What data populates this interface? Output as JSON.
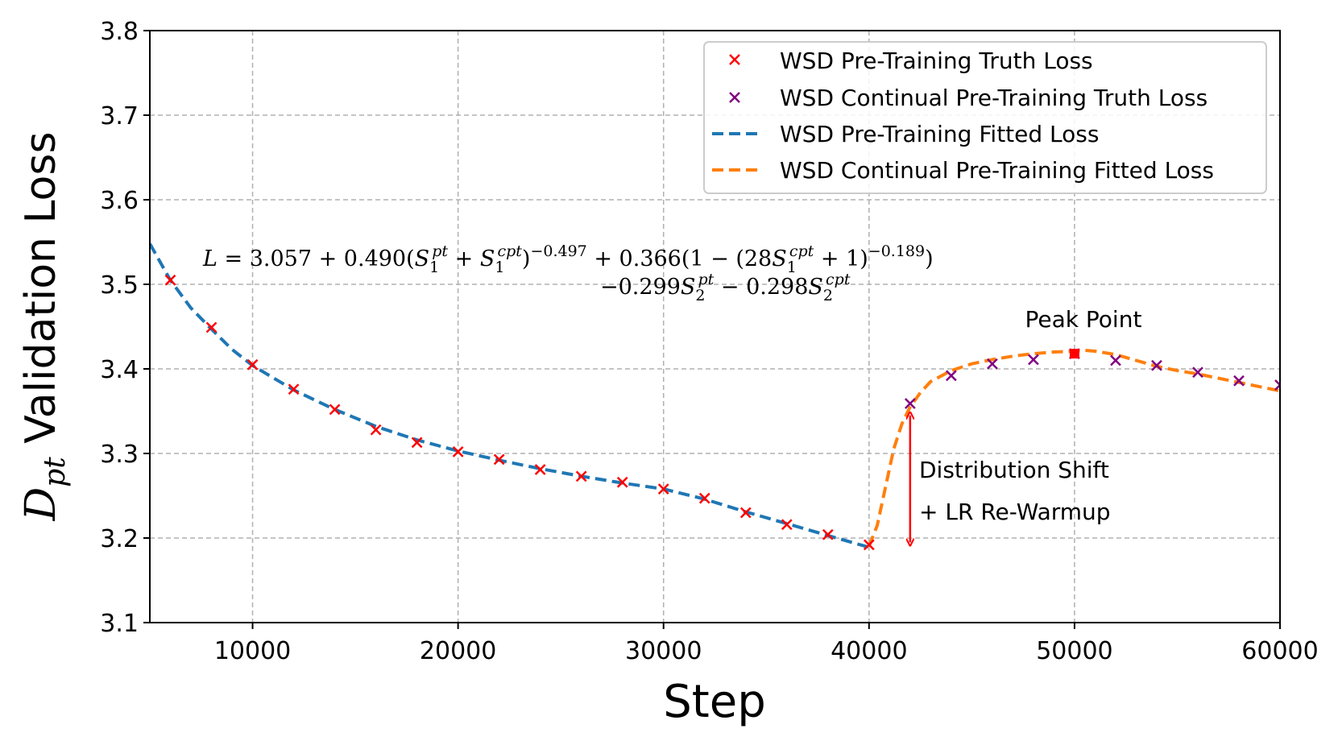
{
  "chart_data": {
    "type": "line",
    "title": "",
    "xlabel": "Step",
    "ylabel_main": "D",
    "ylabel_sub": "pt",
    "ylabel_rest": " Validation Loss",
    "xlim": [
      5000,
      60000
    ],
    "ylim": [
      3.1,
      3.8
    ],
    "xticks": [
      10000,
      20000,
      30000,
      40000,
      50000,
      60000
    ],
    "xtick_labels": [
      "10000",
      "20000",
      "30000",
      "40000",
      "50000",
      "60000"
    ],
    "yticks": [
      3.1,
      3.2,
      3.3,
      3.4,
      3.5,
      3.6,
      3.7,
      3.8
    ],
    "ytick_labels": [
      "3.1",
      "3.2",
      "3.3",
      "3.4",
      "3.5",
      "3.6",
      "3.7",
      "3.8"
    ],
    "grid": true,
    "legend_position": "top-right",
    "series": [
      {
        "name": "WSD Pre-Training Truth Loss",
        "kind": "scatter",
        "marker": "x",
        "color": "#ff0000",
        "x": [
          6000,
          8000,
          10000,
          12000,
          14000,
          16000,
          18000,
          20000,
          22000,
          24000,
          26000,
          28000,
          30000,
          32000,
          34000,
          36000,
          38000,
          40000
        ],
        "y": [
          3.505,
          3.449,
          3.405,
          3.376,
          3.352,
          3.328,
          3.313,
          3.302,
          3.293,
          3.281,
          3.273,
          3.266,
          3.258,
          3.247,
          3.23,
          3.216,
          3.204,
          3.192
        ]
      },
      {
        "name": "WSD Continual Pre-Training Truth Loss",
        "kind": "scatter",
        "marker": "x",
        "color": "#800080",
        "x": [
          42000,
          44000,
          46000,
          48000,
          50000,
          52000,
          54000,
          56000,
          58000,
          60000
        ],
        "y": [
          3.359,
          3.392,
          3.406,
          3.411,
          3.418,
          3.41,
          3.404,
          3.396,
          3.386,
          3.381
        ]
      },
      {
        "name": "WSD Pre-Training Fitted Loss",
        "kind": "line",
        "dash": true,
        "color": "#1f77b4",
        "x": [
          5000,
          6000,
          7000,
          8000,
          9000,
          10000,
          12000,
          14000,
          16000,
          18000,
          20000,
          22000,
          24000,
          26000,
          28000,
          30000,
          32000,
          34000,
          36000,
          38000,
          40000
        ],
        "y": [
          3.548,
          3.505,
          3.472,
          3.447,
          3.423,
          3.404,
          3.375,
          3.352,
          3.332,
          3.316,
          3.303,
          3.292,
          3.282,
          3.273,
          3.265,
          3.258,
          3.246,
          3.231,
          3.217,
          3.203,
          3.189
        ]
      },
      {
        "name": "WSD Continual Pre-Training Fitted Loss",
        "kind": "line",
        "dash": true,
        "color": "#ff7f0e",
        "x": [
          40000,
          40400,
          40800,
          41200,
          41600,
          42000,
          42500,
          43000,
          44000,
          45000,
          46000,
          47000,
          48000,
          49000,
          50000,
          50500,
          51000,
          52000,
          53000,
          54000,
          55000,
          56000,
          57000,
          58000,
          59000,
          60000
        ],
        "y": [
          3.19,
          3.215,
          3.26,
          3.305,
          3.335,
          3.355,
          3.372,
          3.385,
          3.398,
          3.406,
          3.411,
          3.415,
          3.418,
          3.42,
          3.421,
          3.422,
          3.421,
          3.417,
          3.41,
          3.403,
          3.398,
          3.394,
          3.389,
          3.384,
          3.379,
          3.374
        ]
      }
    ],
    "peak_point": {
      "label": "Peak Point",
      "x": 50000,
      "y": 3.418,
      "color": "#ff0000"
    },
    "arrow": {
      "x": 42000,
      "y_from": 3.195,
      "y_to": 3.345,
      "color": "#ff0000"
    },
    "annotations": {
      "shift_line1": "Distribution Shift",
      "shift_line2": "+ LR Re-Warmup"
    },
    "equation": {
      "line1_parts": [
        "L",
        " = 3.057 + 0.490(",
        "S",
        "1",
        "pt",
        " + ",
        "S",
        "1",
        "cpt",
        ")",
        "−0.497",
        " + 0.366(1 − (28",
        "S",
        "1",
        "cpt",
        " + 1)",
        "−0.189",
        ")"
      ],
      "line2_parts": [
        "−0.299",
        "S",
        "2",
        "pt",
        " − 0.298",
        "S",
        "2",
        "cpt"
      ]
    }
  }
}
